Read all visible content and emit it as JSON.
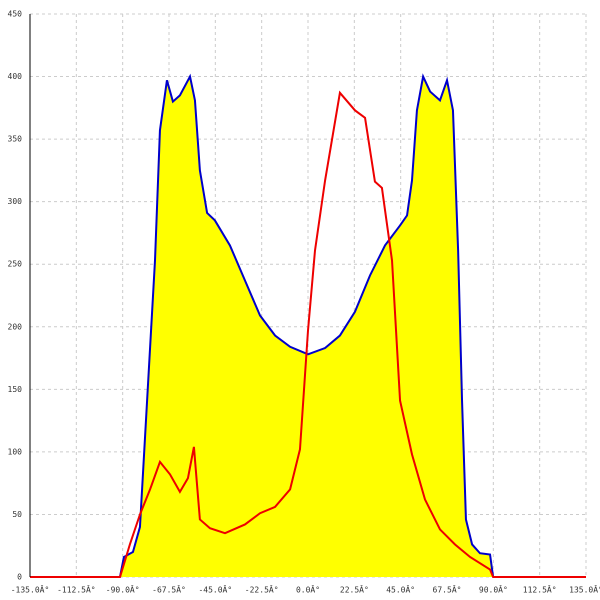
{
  "chart_data": {
    "type": "area-line",
    "xlim": [
      -135,
      135
    ],
    "ylim": [
      0,
      450
    ],
    "xticks": [
      {
        "value": -135,
        "label": "-135.0Â°"
      },
      {
        "value": -112.5,
        "label": "-112.5Â°"
      },
      {
        "value": -90,
        "label": "-90.0Â°"
      },
      {
        "value": -67.5,
        "label": "-67.5Â°"
      },
      {
        "value": -45,
        "label": "-45.0Â°"
      },
      {
        "value": -22.5,
        "label": "-22.5Â°"
      },
      {
        "value": 0,
        "label": "0.0Â°"
      },
      {
        "value": 22.5,
        "label": "22.5Â°"
      },
      {
        "value": 45,
        "label": "45.0Â°"
      },
      {
        "value": 67.5,
        "label": "67.5Â°"
      },
      {
        "value": 90,
        "label": "90.0Â°"
      },
      {
        "value": 112.5,
        "label": "112.5Â°"
      },
      {
        "value": 135,
        "label": "135.0Â°"
      }
    ],
    "yticks": [
      0,
      50,
      100,
      150,
      200,
      250,
      300,
      350,
      400,
      450
    ],
    "grid": true,
    "series": [
      {
        "kind": "area",
        "color": "#0000cc",
        "fill": "#ffff00",
        "x": [
          -91.3,
          -89.4,
          -85,
          -81.6,
          -74.3,
          -71.9,
          -68.5,
          -65.6,
          -62.2,
          -57.3,
          -54.9,
          -52.5,
          -49,
          -45.2,
          -37.9,
          -30.6,
          -23.3,
          -16,
          -8.7,
          0,
          8.3,
          15.5,
          22.8,
          30.1,
          37.4,
          44.7,
          48.1,
          50.5,
          52.9,
          55.9,
          59.3,
          64.1,
          67.5,
          70.4,
          72.9,
          74.8,
          76.7,
          79.7,
          83.5,
          88.4,
          89.9
        ],
        "values": [
          0,
          16,
          20,
          40,
          253,
          357,
          397,
          380,
          385,
          400,
          381,
          325,
          291,
          285,
          265,
          237,
          209,
          193,
          184,
          178,
          183,
          193,
          212,
          241,
          265,
          281,
          289,
          317,
          373,
          400,
          388,
          381,
          397,
          373,
          261,
          141,
          46,
          26,
          19,
          18,
          0
        ]
      },
      {
        "kind": "line",
        "color": "#ee0000",
        "x": [
          -135,
          -91.3,
          -86.5,
          -81.6,
          -76.7,
          -71.9,
          -67,
          -62.2,
          -58.3,
          -55.4,
          -52.5,
          -47.6,
          -40.3,
          -30.6,
          -23.3,
          -16,
          -8.7,
          -3.9,
          0,
          3.4,
          8.3,
          15.5,
          22.8,
          27.7,
          32.5,
          35.9,
          40.8,
          44.7,
          50.5,
          56.8,
          64.1,
          71.4,
          78.7,
          88.4,
          89.9,
          135
        ],
        "values": [
          0,
          0,
          26,
          50,
          70,
          92,
          82,
          68,
          79,
          104,
          46,
          39,
          35,
          42,
          51,
          56,
          70,
          102,
          197,
          261,
          317,
          387,
          373,
          367,
          316,
          311,
          253,
          141,
          98,
          62,
          38,
          26,
          16,
          6,
          0,
          0
        ]
      }
    ]
  }
}
